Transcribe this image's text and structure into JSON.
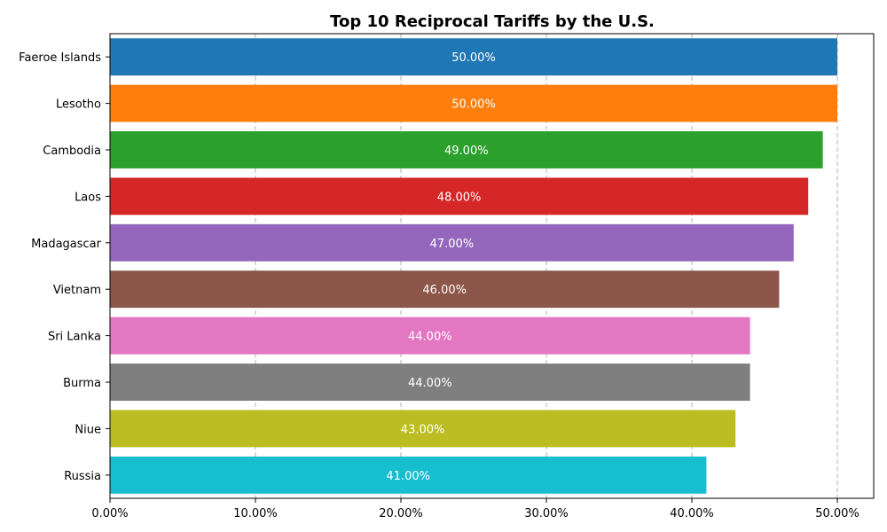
{
  "chart_data": {
    "type": "bar",
    "orientation": "horizontal",
    "title": "Top 10 Reciprocal Tariffs by the U.S.",
    "xlabel": "",
    "ylabel": "",
    "categories": [
      "Faeroe Islands",
      "Lesotho",
      "Cambodia",
      "Laos",
      "Madagascar",
      "Vietnam",
      "Sri Lanka",
      "Burma",
      "Niue",
      "Russia"
    ],
    "values": [
      50,
      50,
      49,
      48,
      47,
      46,
      44,
      44,
      43,
      41
    ],
    "data_labels": [
      "50.00%",
      "50.00%",
      "49.00%",
      "48.00%",
      "47.00%",
      "46.00%",
      "44.00%",
      "44.00%",
      "43.00%",
      "41.00%"
    ],
    "colors": [
      "#1f77b4",
      "#ff7f0e",
      "#2ca02c",
      "#d62728",
      "#9467bd",
      "#8c564b",
      "#e377c2",
      "#7f7f7f",
      "#bcbd22",
      "#17becf"
    ],
    "xlim": [
      0,
      52.5
    ],
    "x_ticks": [
      0,
      10,
      20,
      30,
      40,
      50
    ],
    "x_tick_labels": [
      "0.00%",
      "10.00%",
      "20.00%",
      "30.00%",
      "40.00%",
      "50.00%"
    ],
    "grid": "x",
    "legend": "none"
  }
}
